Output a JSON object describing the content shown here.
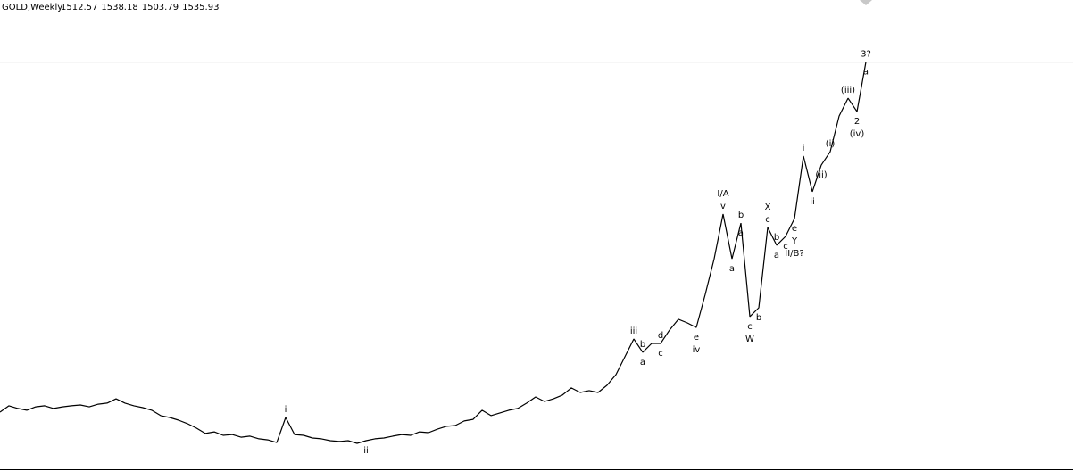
{
  "chart_data": {
    "type": "line",
    "symbol": "GOLD,Weekly",
    "ohlc": [
      1512.57,
      1538.18,
      1503.79,
      1535.93
    ],
    "color": "#000000",
    "ylim": [
      0,
      1769
    ],
    "values": [
      221,
      245,
      235,
      228,
      241,
      245,
      235,
      241,
      245,
      248,
      241,
      251,
      255,
      271,
      255,
      245,
      238,
      228,
      208,
      201,
      191,
      178,
      161,
      141,
      147,
      134,
      137,
      127,
      131,
      121,
      117,
      107,
      201,
      137,
      134,
      124,
      121,
      114,
      111,
      114,
      104,
      114,
      121,
      124,
      131,
      137,
      134,
      147,
      144,
      157,
      168,
      171,
      188,
      194,
      228,
      208,
      218,
      228,
      235,
      255,
      278,
      261,
      271,
      285,
      312,
      295,
      302,
      295,
      322,
      362,
      429,
      496,
      446,
      479,
      479,
      529,
      570,
      556,
      539,
      663,
      797,
      965,
      797,
      931,
      580,
      613,
      915,
      848,
      881,
      948,
      1183,
      1049,
      1149,
      1199,
      1333,
      1400,
      1350,
      1536
    ],
    "annotations": [
      {
        "text": "i",
        "at": 32,
        "side": "above"
      },
      {
        "text": "ii",
        "at": 41,
        "side": "below"
      },
      {
        "text": "iii",
        "at": 71,
        "side": "above"
      },
      {
        "text": "a",
        "at": 72,
        "side": "below"
      },
      {
        "text": "b",
        "at": 72,
        "side": "above"
      },
      {
        "text": "c",
        "at": 74,
        "side": "below"
      },
      {
        "text": "d",
        "at": 74,
        "side": "above"
      },
      {
        "text": "e",
        "at": 78,
        "side": "below"
      },
      {
        "text": "iv",
        "at": 78,
        "side": "below"
      },
      {
        "text": "v",
        "at": 81,
        "side": "above"
      },
      {
        "text": "I/A",
        "at": 81,
        "side": "above"
      },
      {
        "text": "a",
        "at": 82,
        "side": "below"
      },
      {
        "text": "b",
        "at": 83,
        "side": "above"
      },
      {
        "text": "a",
        "at": 83,
        "side": "below"
      },
      {
        "text": "c",
        "at": 84,
        "side": "below"
      },
      {
        "text": "W",
        "at": 84,
        "side": "below"
      },
      {
        "text": "b",
        "at": 85,
        "side": "below"
      },
      {
        "text": "c",
        "at": 86,
        "side": "above"
      },
      {
        "text": "X",
        "at": 86,
        "side": "above"
      },
      {
        "text": "b",
        "at": 87,
        "side": "above"
      },
      {
        "text": "a",
        "at": 87,
        "side": "below"
      },
      {
        "text": "c",
        "at": 88,
        "side": "below"
      },
      {
        "text": "e",
        "at": 89,
        "side": "below"
      },
      {
        "text": "Y",
        "at": 89,
        "side": "below"
      },
      {
        "text": "II/B?",
        "at": 89,
        "side": "below"
      },
      {
        "text": "i",
        "at": 90,
        "side": "above"
      },
      {
        "text": "ii",
        "at": 91,
        "side": "below"
      },
      {
        "text": "(ii)",
        "at": 92,
        "side": "below"
      },
      {
        "text": "(i)",
        "at": 93,
        "side": "above"
      },
      {
        "text": "(iii)",
        "at": 95,
        "side": "above"
      },
      {
        "text": "2",
        "at": 96,
        "side": "below"
      },
      {
        "text": "(iv)",
        "at": 96,
        "side": "below"
      },
      {
        "text": "a",
        "at": 97,
        "side": "below"
      },
      {
        "text": "3?",
        "at": 97,
        "side": "above"
      }
    ]
  }
}
